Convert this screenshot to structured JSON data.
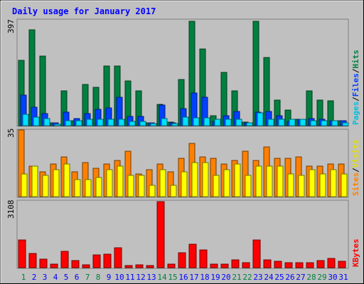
{
  "chart_data": [
    {
      "type": "bar",
      "title": "Daily usage for January 2017",
      "categories": [
        "1",
        "2",
        "3",
        "4",
        "5",
        "6",
        "7",
        "8",
        "9",
        "10",
        "11",
        "12",
        "13",
        "14",
        "15",
        "16",
        "17",
        "18",
        "19",
        "20",
        "21",
        "22",
        "23",
        "24",
        "25",
        "26",
        "27",
        "28",
        "29",
        "30",
        "31"
      ],
      "weekend_days": [
        "1",
        "7",
        "8",
        "14",
        "15",
        "21",
        "22",
        "28",
        "29"
      ],
      "ymax_label": "397",
      "ylim": [
        0,
        397
      ],
      "ylabel_parts": [
        "Pages",
        "/",
        "Files",
        "/",
        "Hits"
      ],
      "series": [
        {
          "name": "Hits",
          "color": "#008040",
          "values": [
            248,
            365,
            264,
            12,
            131,
            20,
            156,
            146,
            226,
            226,
            171,
            133,
            10,
            81,
            14,
            176,
            397,
            291,
            37,
            202,
            132,
            13,
            397,
            258,
            98,
            60,
            25,
            133,
            96,
            94,
            19
          ]
        },
        {
          "name": "Files",
          "color": "#0040ff",
          "values": [
            115,
            70,
            46,
            10,
            52,
            27,
            47,
            63,
            68,
            108,
            34,
            34,
            10,
            77,
            10,
            66,
            123,
            108,
            17,
            37,
            53,
            12,
            50,
            53,
            38,
            16,
            24,
            26,
            25,
            20,
            19
          ]
        },
        {
          "name": "Pages",
          "color": "#00e0ff",
          "values": [
            42,
            32,
            27,
            6,
            20,
            20,
            24,
            24,
            25,
            25,
            17,
            17,
            8,
            27,
            8,
            32,
            30,
            30,
            24,
            25,
            24,
            10,
            48,
            25,
            24,
            24,
            24,
            20,
            20,
            20,
            12
          ]
        }
      ]
    },
    {
      "type": "bar",
      "ymax_label": "35",
      "ylim": [
        0,
        35
      ],
      "ylabel_parts": [
        "Sites",
        "/",
        "Visits"
      ],
      "series": [
        {
          "name": "Visits",
          "color": "#ff8000",
          "values": [
            35,
            16,
            13,
            17,
            21,
            13,
            18,
            15,
            17,
            19,
            24,
            12,
            14,
            17,
            13,
            20,
            28,
            21,
            20,
            17,
            19,
            24,
            19,
            26,
            20,
            20,
            21,
            16,
            16,
            17,
            17
          ]
        },
        {
          "name": "Sites",
          "color": "#ffff00",
          "values": [
            12,
            16,
            11,
            14,
            17,
            9,
            9,
            10,
            14,
            16,
            11,
            11,
            6,
            14,
            6,
            13,
            18,
            18,
            11,
            14,
            17,
            11,
            16,
            16,
            16,
            12,
            11,
            14,
            12,
            14,
            12
          ]
        }
      ]
    },
    {
      "type": "bar",
      "ymax_label": "3108",
      "ylim": [
        0,
        3108
      ],
      "ylabel_parts": [
        "KBytes"
      ],
      "series": [
        {
          "name": "KBytes",
          "color": "#ff0000",
          "values": [
            1311,
            659,
            400,
            162,
            752,
            339,
            120,
            599,
            630,
            938,
            100,
            120,
            100,
            3108,
            180,
            700,
            1096,
            830,
            160,
            160,
            370,
            250,
            1298,
            380,
            290,
            240,
            240,
            240,
            340,
            440,
            290
          ]
        }
      ]
    }
  ],
  "colors": {
    "background": "#c0c0c0",
    "panel": "#d4d0c8",
    "title": "#0000ff",
    "label_weekday": "#0000ff",
    "label_weekend": "#008040",
    "ylabel_text": "#000000"
  }
}
